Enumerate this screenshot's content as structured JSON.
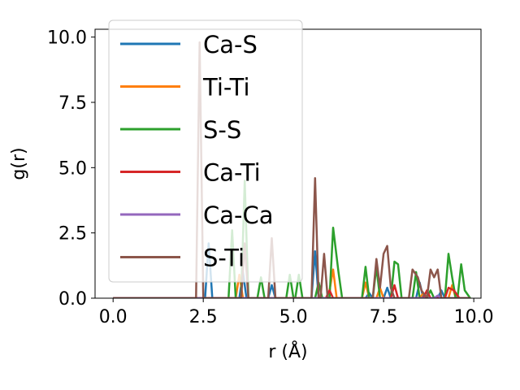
{
  "chart_data": {
    "type": "line",
    "title": "",
    "xlabel": "r (Å)",
    "ylabel": "g(r)",
    "xlim": [
      -0.5,
      10.2
    ],
    "ylim": [
      0,
      10.3
    ],
    "x_ticks": [
      0.0,
      2.5,
      5.0,
      7.5,
      10.0
    ],
    "x_tick_labels": [
      "0.0",
      "2.5",
      "5.0",
      "7.5",
      "10.0"
    ],
    "y_ticks": [
      0.0,
      2.5,
      5.0,
      7.5,
      10.0
    ],
    "y_tick_labels": [
      "0.0",
      "2.5",
      "5.0",
      "7.5",
      "10.0"
    ],
    "grid": false,
    "legend_position": "upper-left",
    "series": [
      {
        "name": "Ca-S",
        "color": "#1f77b4",
        "points": [
          [
            0,
            0
          ],
          [
            2.55,
            0
          ],
          [
            2.65,
            2.1
          ],
          [
            2.75,
            0
          ],
          [
            3.5,
            0
          ],
          [
            3.6,
            1.0
          ],
          [
            3.7,
            0
          ],
          [
            4.3,
            0
          ],
          [
            4.4,
            0.5
          ],
          [
            4.5,
            0
          ],
          [
            5.5,
            0
          ],
          [
            5.6,
            1.8
          ],
          [
            5.7,
            0
          ],
          [
            7.0,
            0
          ],
          [
            7.1,
            0.2
          ],
          [
            7.2,
            0
          ],
          [
            7.5,
            0
          ],
          [
            7.6,
            0.4
          ],
          [
            7.7,
            0
          ],
          [
            8.4,
            0
          ],
          [
            8.5,
            0.6
          ],
          [
            8.6,
            0
          ],
          [
            9.0,
            0
          ],
          [
            9.1,
            0.3
          ],
          [
            9.2,
            0
          ],
          [
            9.9,
            0
          ]
        ]
      },
      {
        "name": "Ti-Ti",
        "color": "#ff7f0e",
        "points": [
          [
            0,
            0
          ],
          [
            3.4,
            0
          ],
          [
            3.5,
            0.9
          ],
          [
            3.6,
            0
          ],
          [
            5.9,
            0
          ],
          [
            6.0,
            0.3
          ],
          [
            6.1,
            1.1
          ],
          [
            6.2,
            0
          ],
          [
            6.9,
            0
          ],
          [
            7.0,
            0.6
          ],
          [
            7.1,
            0
          ],
          [
            7.3,
            0
          ],
          [
            7.4,
            0.4
          ],
          [
            7.5,
            0
          ],
          [
            8.5,
            0
          ],
          [
            8.6,
            0.2
          ],
          [
            8.7,
            0
          ],
          [
            9.3,
            0
          ],
          [
            9.4,
            0.5
          ],
          [
            9.5,
            0
          ],
          [
            9.9,
            0
          ]
        ]
      },
      {
        "name": "S-S",
        "color": "#2ca02c",
        "points": [
          [
            0,
            0
          ],
          [
            3.2,
            0
          ],
          [
            3.3,
            2.6
          ],
          [
            3.4,
            0
          ],
          [
            3.55,
            0
          ],
          [
            3.65,
            4.5
          ],
          [
            3.75,
            0
          ],
          [
            4.0,
            0
          ],
          [
            4.1,
            0.8
          ],
          [
            4.2,
            0
          ],
          [
            4.8,
            0
          ],
          [
            4.9,
            0.9
          ],
          [
            5.0,
            0
          ],
          [
            5.05,
            0
          ],
          [
            5.15,
            0.9
          ],
          [
            5.25,
            0
          ],
          [
            5.6,
            0
          ],
          [
            5.7,
            0.6
          ],
          [
            5.8,
            0
          ],
          [
            6.0,
            0
          ],
          [
            6.1,
            2.7
          ],
          [
            6.25,
            1.0
          ],
          [
            6.35,
            0
          ],
          [
            6.9,
            0
          ],
          [
            7.0,
            1.2
          ],
          [
            7.1,
            0
          ],
          [
            7.2,
            0
          ],
          [
            7.3,
            1.2
          ],
          [
            7.4,
            0
          ],
          [
            7.7,
            0
          ],
          [
            7.8,
            1.4
          ],
          [
            7.9,
            1.3
          ],
          [
            8.0,
            0
          ],
          [
            8.3,
            0
          ],
          [
            8.4,
            1.0
          ],
          [
            8.5,
            0
          ],
          [
            8.7,
            0
          ],
          [
            8.8,
            0.3
          ],
          [
            8.9,
            0
          ],
          [
            9.2,
            0
          ],
          [
            9.3,
            1.7
          ],
          [
            9.4,
            0.8
          ],
          [
            9.5,
            0
          ],
          [
            9.55,
            0
          ],
          [
            9.65,
            1.3
          ],
          [
            9.75,
            0.3
          ],
          [
            9.9,
            0
          ]
        ]
      },
      {
        "name": "Ca-Ti",
        "color": "#d62728",
        "points": [
          [
            0,
            0
          ],
          [
            5.9,
            0
          ],
          [
            6.0,
            0.3
          ],
          [
            6.1,
            0
          ],
          [
            7.7,
            0
          ],
          [
            7.8,
            0.5
          ],
          [
            7.9,
            0
          ],
          [
            8.6,
            0
          ],
          [
            8.7,
            0.3
          ],
          [
            8.8,
            0
          ],
          [
            9.2,
            0
          ],
          [
            9.3,
            0.4
          ],
          [
            9.45,
            0.3
          ],
          [
            9.6,
            0
          ],
          [
            9.9,
            0
          ]
        ]
      },
      {
        "name": "Ca-Ca",
        "color": "#9467bd",
        "points": [
          [
            0,
            0
          ],
          [
            8.9,
            0
          ],
          [
            9.0,
            0.1
          ],
          [
            9.1,
            0
          ],
          [
            9.9,
            0
          ]
        ]
      },
      {
        "name": "S-Ti",
        "color": "#8c564b",
        "points": [
          [
            0,
            0
          ],
          [
            2.3,
            0
          ],
          [
            2.4,
            9.8
          ],
          [
            2.5,
            0
          ],
          [
            3.55,
            0
          ],
          [
            3.65,
            2.1
          ],
          [
            3.75,
            0
          ],
          [
            4.3,
            0
          ],
          [
            4.4,
            2.3
          ],
          [
            4.5,
            0
          ],
          [
            5.5,
            0
          ],
          [
            5.6,
            4.6
          ],
          [
            5.7,
            0
          ],
          [
            5.75,
            0
          ],
          [
            5.85,
            1.7
          ],
          [
            5.95,
            0
          ],
          [
            7.2,
            0
          ],
          [
            7.3,
            1.5
          ],
          [
            7.4,
            0.4
          ],
          [
            7.5,
            1.7
          ],
          [
            7.6,
            2.0
          ],
          [
            7.7,
            0.4
          ],
          [
            7.8,
            0
          ],
          [
            8.2,
            0
          ],
          [
            8.3,
            1.1
          ],
          [
            8.45,
            0.8
          ],
          [
            8.55,
            0.3
          ],
          [
            8.7,
            0
          ],
          [
            8.8,
            1.1
          ],
          [
            8.9,
            0.8
          ],
          [
            9.0,
            1.1
          ],
          [
            9.1,
            0
          ],
          [
            9.9,
            0
          ]
        ]
      }
    ]
  }
}
